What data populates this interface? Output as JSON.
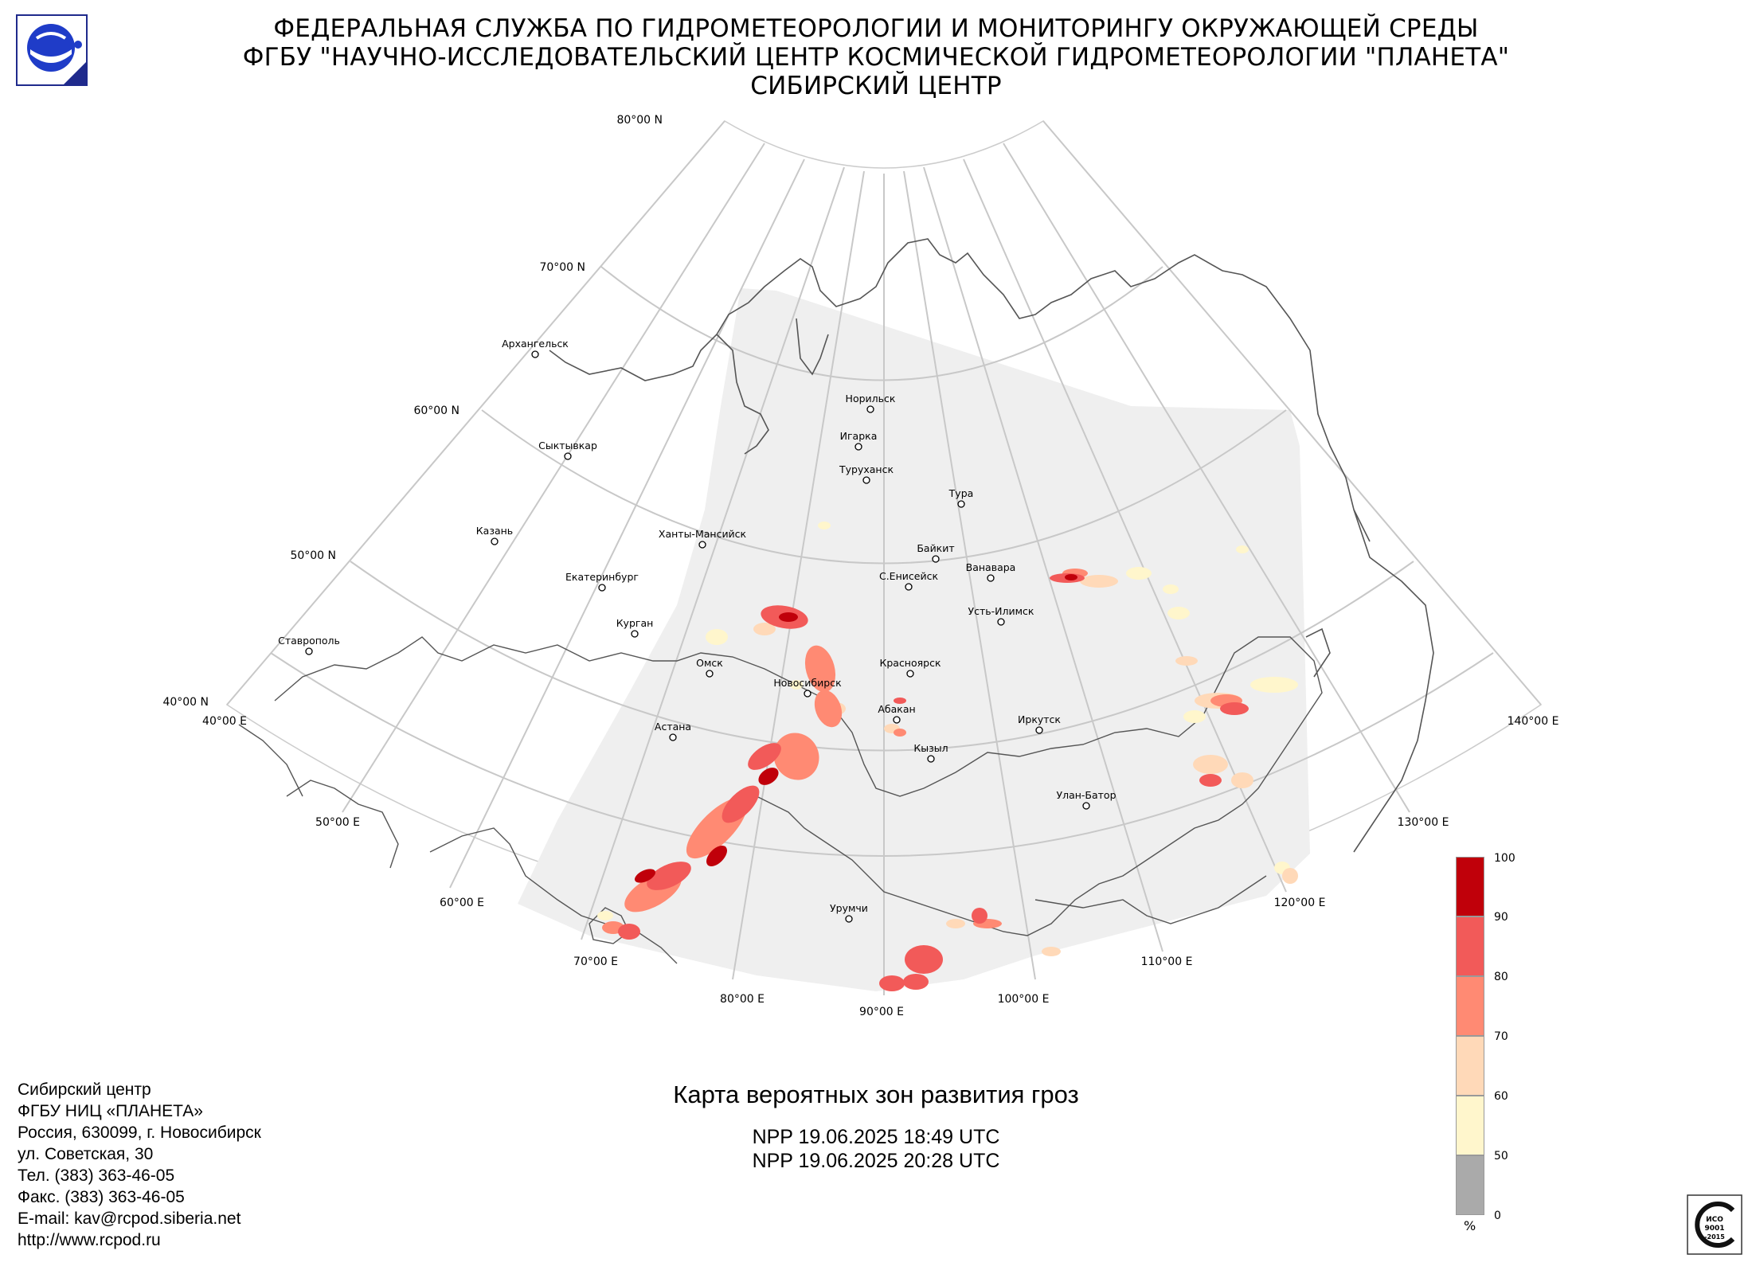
{
  "header": {
    "line1": "ФЕДЕРАЛЬНАЯ СЛУЖБА ПО ГИДРОМЕТЕОРОЛОГИИ И МОНИТОРИНГУ ОКРУЖАЮЩЕЙ СРЕДЫ",
    "line2": "ФГБУ \"НАУЧНО-ИССЛЕДОВАТЕЛЬСКИЙ ЦЕНТР КОСМИЧЕСКОЙ ГИДРОМЕТЕОРОЛОГИИ \"ПЛАНЕТА\"",
    "line3": "СИБИРСКИЙ ЦЕНТР"
  },
  "map": {
    "lat_labels": [
      "80°00 N",
      "70°00 N",
      "60°00 N",
      "50°00 N",
      "40°00 N"
    ],
    "lon_labels": [
      "40°00 E",
      "50°00 E",
      "60°00 E",
      "70°00 E",
      "80°00 E",
      "90°00 E",
      "100°00 E",
      "110°00 E",
      "120°00 E",
      "130°00 E",
      "140°00 E"
    ],
    "cities": [
      "Архангельск",
      "Сыктывкар",
      "Казань",
      "Екатеринбург",
      "Ставрополь",
      "Курган",
      "Омск",
      "Астана",
      "Ханты-Мансийск",
      "Новосибирск",
      "Норильск",
      "Игарка",
      "Туруханск",
      "Тура",
      "Байкит",
      "С.Енисейск",
      "Ванавара",
      "Усть-Илимск",
      "Красноярск",
      "Абакан",
      "Кызыл",
      "Иркутск",
      "Улан-Батор",
      "Урумчи"
    ],
    "colors": {
      "coverage": "#efefef",
      "grid": "#c8c8c8",
      "border": "#555555",
      "p50": "#fff6cc",
      "p60": "#ffd9b8",
      "p70": "#ff8a73",
      "p80": "#f25a59",
      "p90": "#c0000a"
    }
  },
  "caption": {
    "title": "Карта вероятных зон развития гроз",
    "pass1": "NPP 19.06.2025  18:49 UTC",
    "pass2": "NPP 19.06.2025  20:28 UTC"
  },
  "legend": {
    "ticks": [
      "100",
      "90",
      "80",
      "70",
      "60",
      "50",
      "0"
    ],
    "unit": "%",
    "colors": [
      "#c0000a",
      "#f25a59",
      "#ff8a73",
      "#ffd9b8",
      "#fff6cc",
      "#aaaaaa"
    ]
  },
  "contacts": {
    "lines": [
      "Сибирский центр",
      "ФГБУ НИЦ «ПЛАНЕТА»",
      "Россия, 630099, г. Новосибирск",
      "ул. Советская, 30",
      "Тел. (383) 363-46-05",
      "Факс. (383) 363-46-05",
      "E-mail: kav@rcpod.siberia.net",
      "http://www.rcpod.ru"
    ]
  },
  "iso_logo": {
    "line1": "ИСО",
    "line2": "9001",
    "line3": "-2015"
  }
}
